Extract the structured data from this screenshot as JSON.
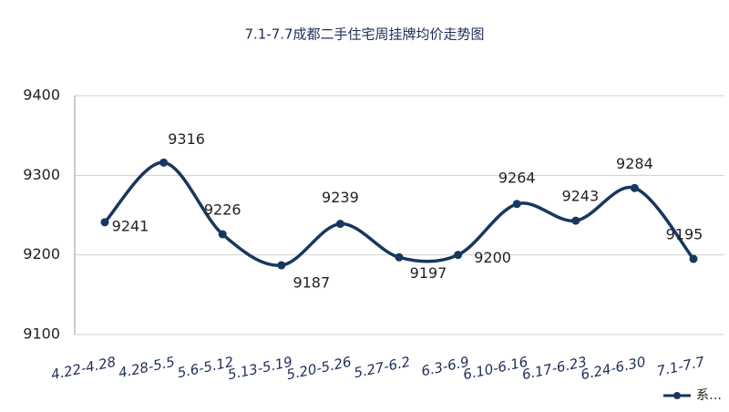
{
  "chart_data": {
    "type": "line",
    "title": "7.1-7.7成都二手住宅周挂牌均价走势图",
    "categories": [
      "4.22-4.28",
      "4.28-5.5",
      "5.6-5.12",
      "5.13-5.19",
      "5.20-5.26",
      "5.27-6.2",
      "6.3-6.9",
      "6.10-6.16",
      "6.17-6.23",
      "6.24-6.30",
      "7.1-7.7"
    ],
    "series": [
      {
        "name": "系…",
        "color": "#17375e",
        "values": [
          9241,
          9316,
          9226,
          9187,
          9239,
          9197,
          9200,
          9264,
          9243,
          9284,
          9195
        ]
      }
    ],
    "ylim": [
      9100,
      9400
    ],
    "yticks": [
      9100,
      9200,
      9300,
      9400
    ],
    "grid": true,
    "smooth": true,
    "legend": "bottom-right"
  }
}
